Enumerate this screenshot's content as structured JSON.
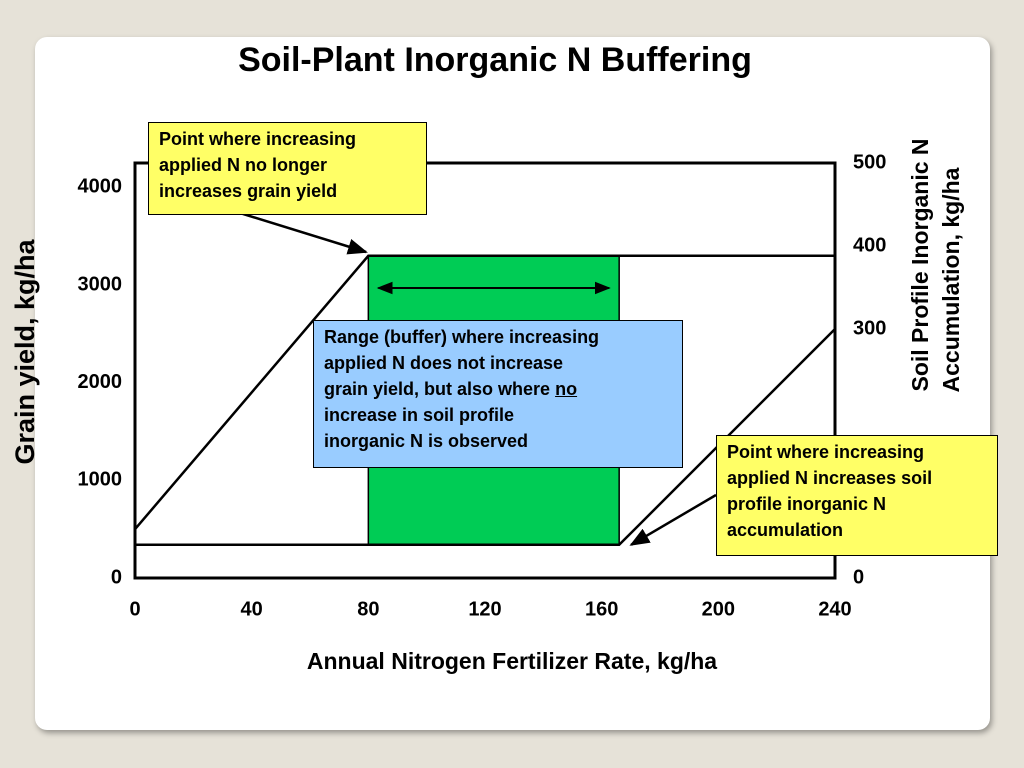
{
  "chart_data": {
    "type": "line",
    "title": "Soil-Plant Inorganic N Buffering",
    "xlabel": "Annual Nitrogen Fertilizer Rate, kg/ha",
    "ylabel": "Grain yield, kg/ha",
    "y2label": [
      "Soil Profile Inorganic N",
      "Accumulation, kg/ha"
    ],
    "xlim": [
      0,
      240
    ],
    "xticks": [
      0,
      40,
      80,
      120,
      160,
      200,
      240
    ],
    "ylim": [
      0,
      4250
    ],
    "yticks": [
      0,
      1000,
      2000,
      3000,
      4000
    ],
    "y2lim": [
      0,
      500
    ],
    "y2ticks": [
      0,
      300,
      400,
      500
    ],
    "series": [
      {
        "color": "#000000",
        "x": [
          0,
          80,
          240
        ],
        "values": [
          500,
          3300,
          3300
        ]
      },
      {
        "color": "#000000",
        "axis": "y2",
        "x": [
          0,
          166,
          240
        ],
        "values": [
          40,
          40,
          300
        ]
      }
    ],
    "buffer": {
      "x": [
        80,
        166
      ],
      "color": "#00cc55"
    },
    "annotations": [
      {
        "lines": [
          "Point where increasing",
          "applied N no longer",
          "increases grain yield"
        ]
      },
      {
        "lines": [
          "Range (buffer) where increasing",
          "applied N does not increase",
          [
            "grain yield, but also where",
            "no"
          ],
          "increase in soil profile",
          "inorganic N is observed"
        ]
      },
      {
        "lines": [
          "Point where increasing",
          "applied N increases soil",
          "profile inorganic N",
          "accumulation"
        ]
      }
    ]
  }
}
